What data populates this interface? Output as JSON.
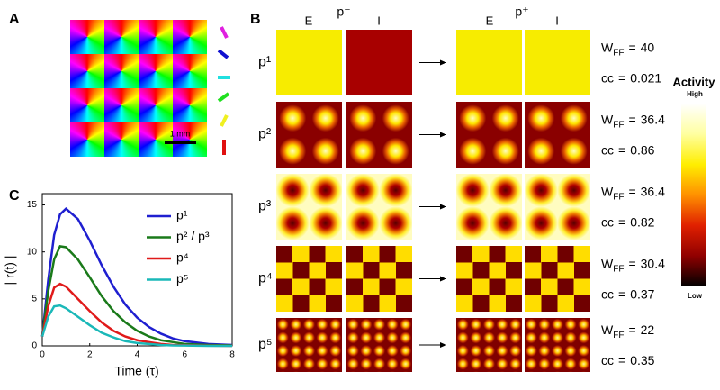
{
  "panels": {
    "A": {
      "title": "A",
      "scale_bar": "1 mm"
    },
    "B": {
      "title": "B",
      "before": "p⁻",
      "after": "p⁺",
      "col_e": "E",
      "col_i": "I",
      "wff_label": "W",
      "wff_sub": "FF",
      "equals": "=",
      "cc_label": "cc",
      "colorbar_title": "Activity",
      "colorbar_high": "High",
      "colorbar_low": "Low",
      "rows": [
        {
          "label": "p¹",
          "wff": 40,
          "cc": 0.021
        },
        {
          "label": "p²",
          "wff": 36.4,
          "cc": 0.86
        },
        {
          "label": "p³",
          "wff": 36.4,
          "cc": 0.82
        },
        {
          "label": "p⁴",
          "wff": 30.4,
          "cc": 0.37
        },
        {
          "label": "p⁵",
          "wff": 22,
          "cc": 0.35
        }
      ]
    },
    "C": {
      "title": "C"
    }
  },
  "chart_data": {
    "type": "line",
    "x_label": "Time (τ)",
    "y_label": "| r(t) |",
    "x": [
      0,
      0.25,
      0.5,
      0.75,
      1,
      1.5,
      2,
      2.5,
      3,
      3.5,
      4,
      4.5,
      5,
      5.5,
      6,
      7,
      8
    ],
    "series": [
      {
        "name": "p¹",
        "color": "#1f1fd0",
        "values": [
          1,
          7,
          11.8,
          14,
          14.6,
          13.5,
          11.2,
          8.6,
          6.3,
          4.4,
          3,
          2,
          1.3,
          0.8,
          0.5,
          0.2,
          0.1
        ]
      },
      {
        "name": "p² / p³",
        "color": "#1a7a1a",
        "values": [
          1,
          5.8,
          9.2,
          10.6,
          10.5,
          9.2,
          7.3,
          5.3,
          3.7,
          2.5,
          1.6,
          1,
          0.6,
          0.4,
          0.2,
          0.1,
          0.05
        ]
      },
      {
        "name": "p⁴",
        "color": "#e01a1a",
        "values": [
          1,
          4.2,
          6.2,
          6.6,
          6.3,
          5,
          3.7,
          2.5,
          1.6,
          1,
          0.6,
          0.4,
          0.2,
          0.1,
          0.07,
          0.02,
          0
        ]
      },
      {
        "name": "p⁵",
        "color": "#1ab8b8",
        "values": [
          1,
          3.1,
          4.2,
          4.3,
          4,
          3.1,
          2.2,
          1.4,
          0.9,
          0.5,
          0.3,
          0.2,
          0.1,
          0.05,
          0.03,
          0,
          0
        ]
      }
    ],
    "xlim": [
      0,
      8
    ],
    "xticks": [
      0,
      2,
      4,
      6,
      8
    ],
    "ylim": [
      0,
      16.2
    ],
    "yticks": [
      0,
      5,
      10,
      15
    ]
  }
}
